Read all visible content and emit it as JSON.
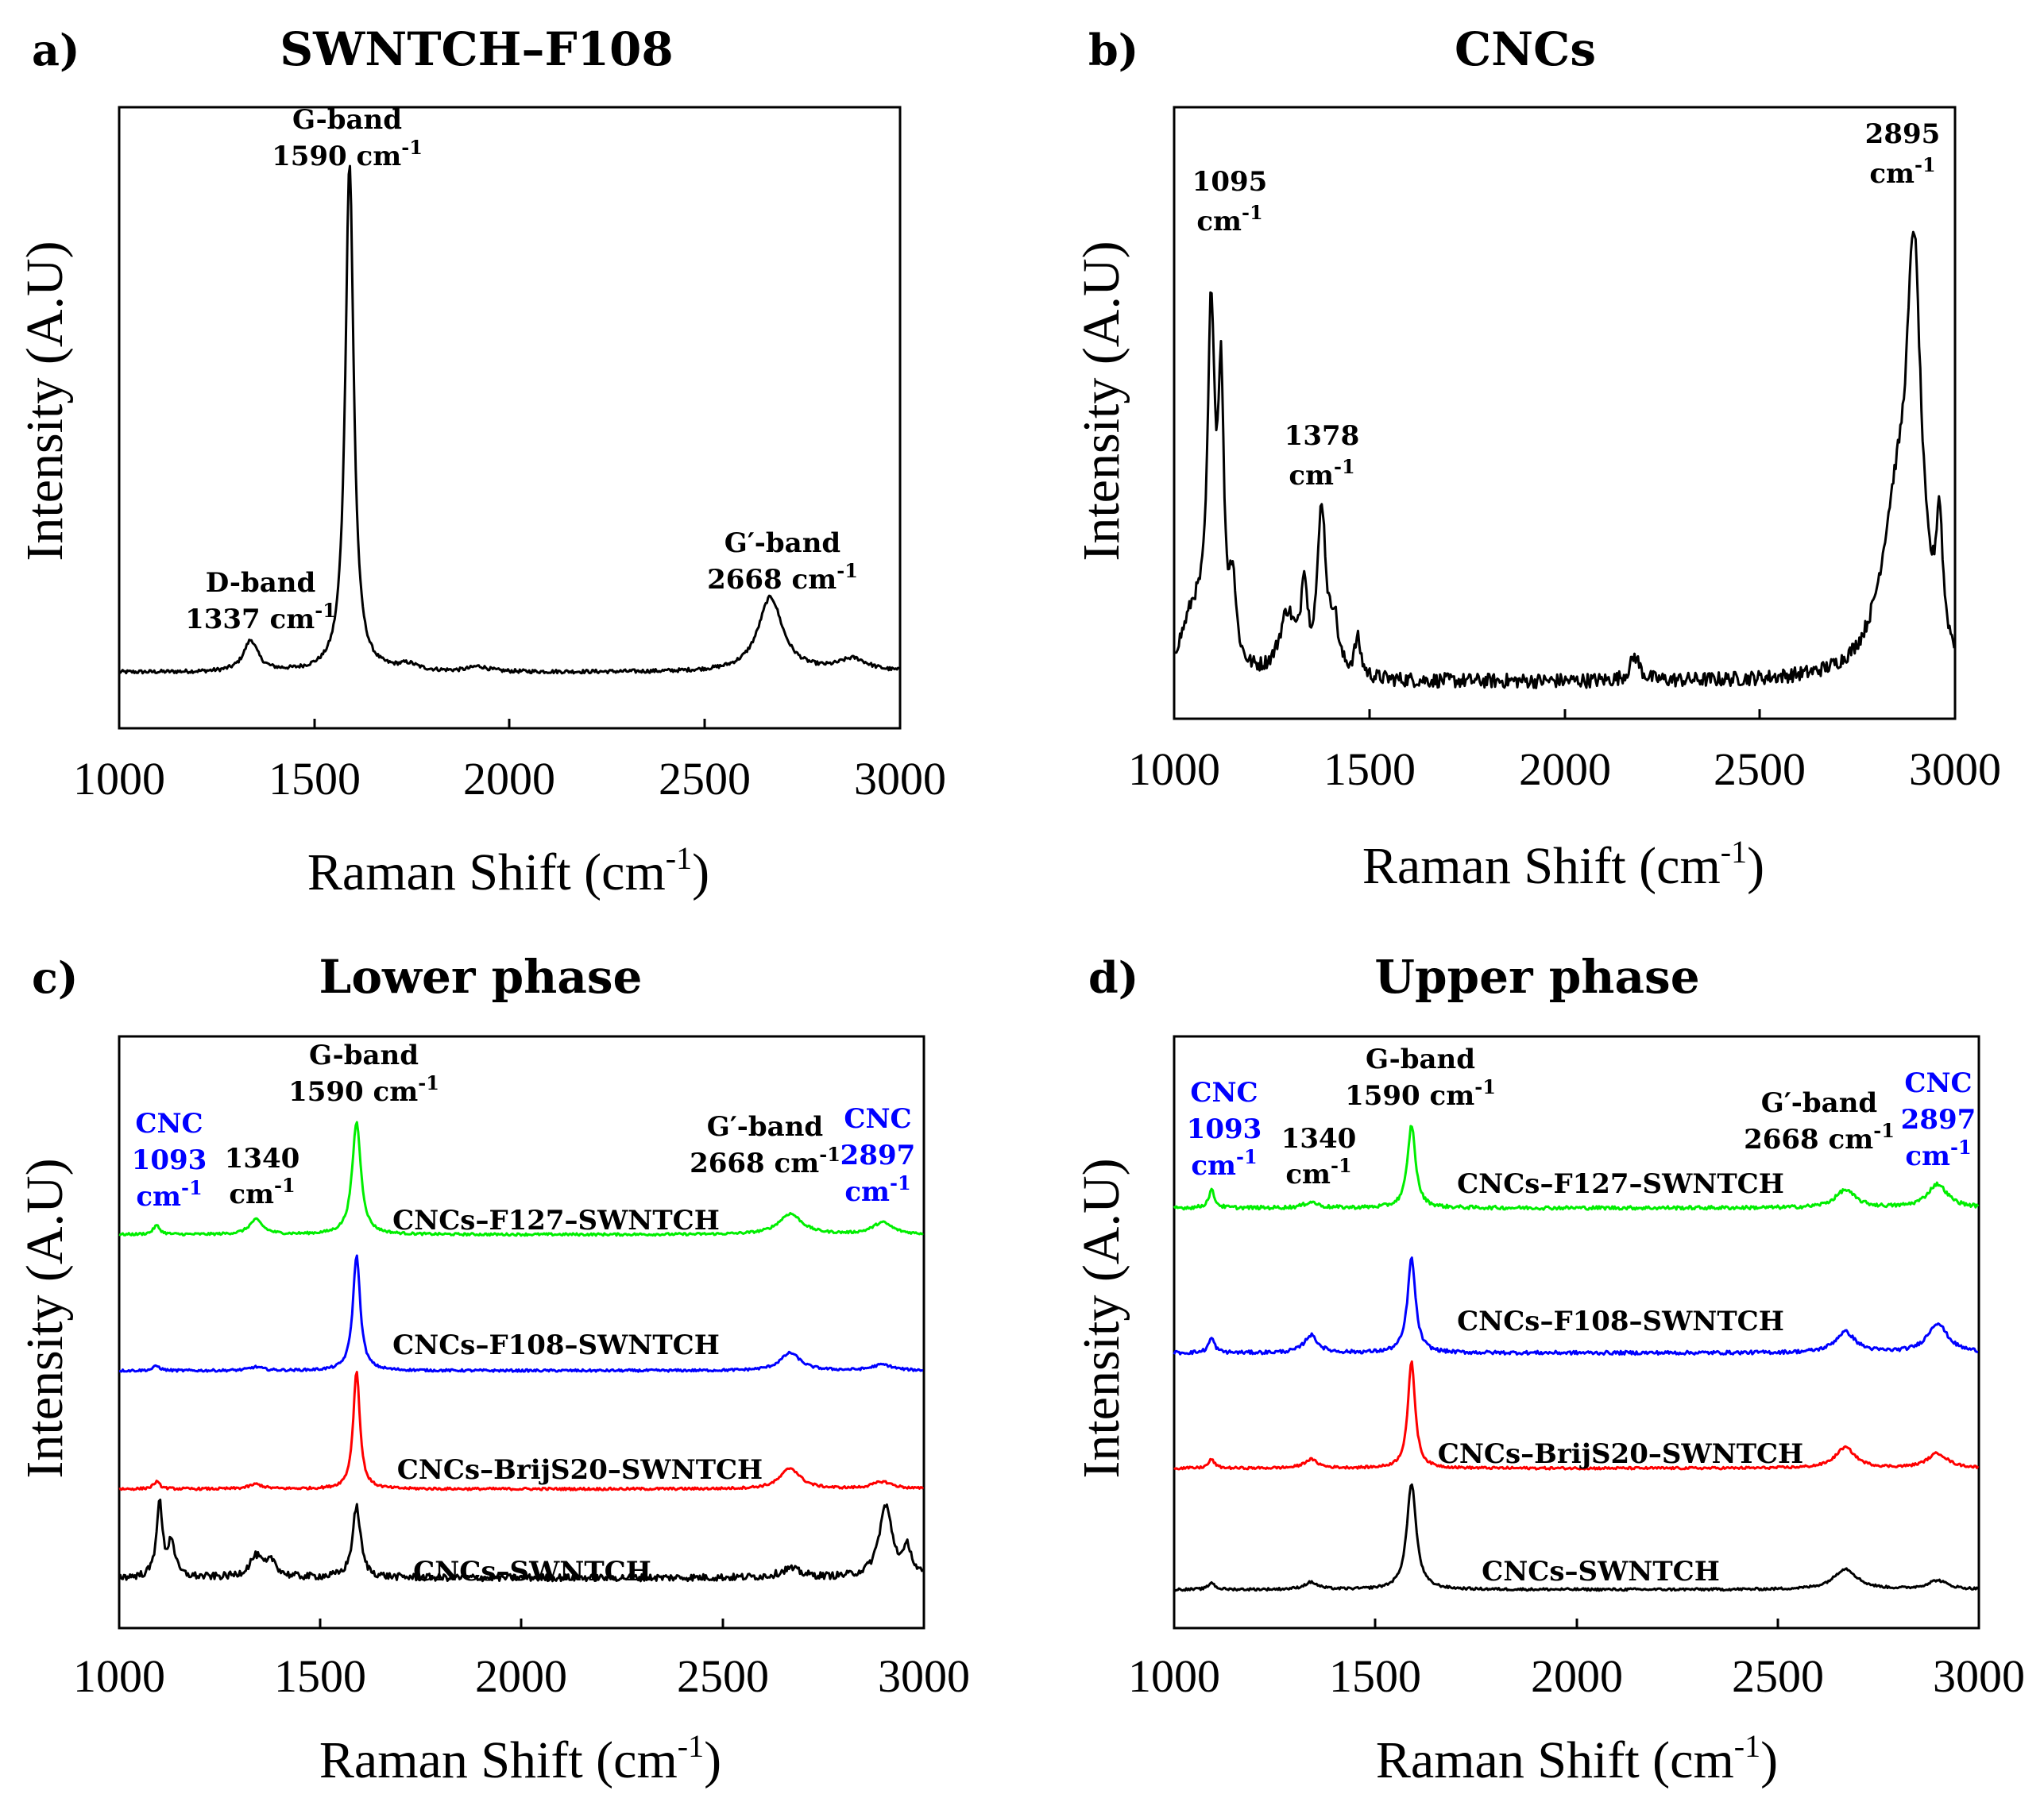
{
  "figure": {
    "panels": [
      {
        "letter": "a)",
        "title": "SWNTCH–F108",
        "xlabel": "Raman Shift (cm",
        "ylabel": "Intensity (A.U)",
        "annotations": [
          {
            "line1": "G-band",
            "line2": "1590 cm",
            "sup": "-1"
          },
          {
            "line1": "D-band",
            "line2": "1337 cm",
            "sup": "-1"
          },
          {
            "line1": "G′-band",
            "line2": "2668 cm",
            "sup": "-1"
          }
        ]
      },
      {
        "letter": "b)",
        "title": "CNCs",
        "xlabel": "Raman Shift (cm",
        "ylabel": "Intensity (A.U)",
        "annotations": [
          {
            "line1": "1095",
            "line2": "cm",
            "sup": "-1"
          },
          {
            "line1": "1378",
            "line2": "cm",
            "sup": "-1"
          },
          {
            "line1": "2895",
            "line2": "cm",
            "sup": "-1"
          }
        ]
      },
      {
        "letter": "c)",
        "title": "Lower phase",
        "xlabel": "Raman Shift (cm",
        "ylabel": "Intensity (A.U)",
        "annotations": [
          {
            "line1": "G-band",
            "line2": "1590 cm",
            "sup": "-1"
          },
          {
            "line1": "1340",
            "line2": "cm",
            "sup": "-1"
          },
          {
            "line1": "G′-band",
            "line2": "2668 cm",
            "sup": "-1"
          }
        ],
        "blue_annotations": [
          {
            "line1": "CNC",
            "line2": "1093",
            "line3": "cm",
            "sup": "-1"
          },
          {
            "line1": "CNC",
            "line2": "2897",
            "line3": "cm",
            "sup": "-1"
          }
        ]
      },
      {
        "letter": "d)",
        "title": "Upper phase",
        "xlabel": "Raman Shift (cm",
        "ylabel": "Intensity (A.U)",
        "annotations": [
          {
            "line1": "G-band",
            "line2": "1590 cm",
            "sup": "-1"
          },
          {
            "line1": "1340",
            "line2": "cm",
            "sup": "-1"
          },
          {
            "line1": "G′-band",
            "line2": "2668 cm",
            "sup": "-1"
          }
        ],
        "blue_annotations": [
          {
            "line1": "CNC",
            "line2": "1093",
            "line3": "cm",
            "sup": "-1"
          },
          {
            "line1": "CNC",
            "line2": "2897",
            "line3": "cm",
            "sup": "-1"
          }
        ]
      }
    ],
    "xlabel_sup": "-1",
    "xlabel_close": ")"
  },
  "chart_data": [
    {
      "type": "line",
      "title": "SWNTCH–F108",
      "xlabel": "Raman Shift (cm-1)",
      "ylabel": "Intensity (A.U)",
      "xlim": [
        1000,
        3000
      ],
      "ylim": [
        0,
        1.0
      ],
      "x_ticks": [
        1000,
        1500,
        2000,
        2500,
        3000
      ],
      "series": [
        {
          "name": "SWNTCH–F108",
          "color": "#000000",
          "baseline": 0.09,
          "noise": 0.003,
          "peaks": [
            [
              1337,
              0.05,
              22
            ],
            [
              1590,
              0.82,
              13
            ],
            [
              1740,
              0.01,
              30
            ],
            [
              1920,
              0.008,
              30
            ],
            [
              2668,
              0.12,
              38
            ],
            [
              2880,
              0.02,
              45
            ]
          ]
        }
      ]
    },
    {
      "type": "line",
      "title": "CNCs",
      "xlabel": "Raman Shift (cm-1)",
      "ylabel": "Intensity (A.U)",
      "xlim": [
        1000,
        3000
      ],
      "ylim": [
        0,
        1.0
      ],
      "x_ticks": [
        1000,
        1500,
        2000,
        2500,
        3000
      ],
      "series": [
        {
          "name": "CNCs",
          "color": "#000000",
          "baseline": 0.06,
          "noise": 0.012,
          "peaks": [
            [
              1050,
              0.1,
              40
            ],
            [
              1095,
              0.55,
              11
            ],
            [
              1120,
              0.42,
              9
            ],
            [
              1150,
              0.13,
              10
            ],
            [
              1290,
              0.1,
              25
            ],
            [
              1333,
              0.14,
              9
            ],
            [
              1378,
              0.27,
              13
            ],
            [
              1410,
              0.08,
              12
            ],
            [
              1470,
              0.06,
              10
            ],
            [
              2180,
              0.04,
              15
            ],
            [
              2850,
              0.25,
              50
            ],
            [
              2895,
              0.6,
              22
            ],
            [
              2960,
              0.2,
              10
            ]
          ]
        }
      ]
    },
    {
      "type": "line",
      "title": "Lower phase",
      "xlabel": "Raman Shift (cm-1)",
      "ylabel": "Intensity (A.U)",
      "xlim": [
        1000,
        3000
      ],
      "ylim": [
        0,
        1.0
      ],
      "x_ticks": [
        1000,
        1500,
        2000,
        2500,
        3000
      ],
      "series": [
        {
          "name": "CNCs–F127–SWNTCH",
          "color": "#00ee00",
          "baseline": 0.665,
          "noise": 0.002,
          "peaks": [
            [
              1093,
              0.015,
              10
            ],
            [
              1340,
              0.025,
              20
            ],
            [
              1590,
              0.19,
              13
            ],
            [
              2668,
              0.035,
              35
            ],
            [
              2897,
              0.02,
              30
            ]
          ]
        },
        {
          "name": "CNCs–F108–SWNTCH",
          "color": "#0000ff",
          "baseline": 0.435,
          "noise": 0.002,
          "peaks": [
            [
              1093,
              0.008,
              10
            ],
            [
              1340,
              0.006,
              20
            ],
            [
              1590,
              0.195,
              11
            ],
            [
              2668,
              0.03,
              30
            ],
            [
              2897,
              0.01,
              30
            ]
          ]
        },
        {
          "name": "CNCs–BrijS20–SWNTCH",
          "color": "#ff0000",
          "baseline": 0.235,
          "noise": 0.002,
          "peaks": [
            [
              1093,
              0.012,
              10
            ],
            [
              1340,
              0.008,
              20
            ],
            [
              1590,
              0.2,
              10
            ],
            [
              2668,
              0.035,
              30
            ],
            [
              2897,
              0.012,
              30
            ]
          ]
        },
        {
          "name": "CNCs–SWNTCH",
          "color": "#000000",
          "baseline": 0.085,
          "noise": 0.006,
          "peaks": [
            [
              1100,
              0.125,
              9
            ],
            [
              1130,
              0.06,
              10
            ],
            [
              1340,
              0.035,
              20
            ],
            [
              1380,
              0.025,
              15
            ],
            [
              1590,
              0.12,
              12
            ],
            [
              2668,
              0.015,
              30
            ],
            [
              2905,
              0.12,
              20
            ],
            [
              2960,
              0.045,
              12
            ]
          ]
        }
      ]
    },
    {
      "type": "line",
      "title": "Upper phase",
      "xlabel": "Raman Shift (cm-1)",
      "ylabel": "Intensity (A.U)",
      "xlim": [
        1000,
        3000
      ],
      "ylim": [
        0,
        1.0
      ],
      "x_ticks": [
        1000,
        1500,
        2000,
        2500,
        3000
      ],
      "series": [
        {
          "name": "CNCs–F127–SWNTCH",
          "color": "#00ee00",
          "baseline": 0.71,
          "noise": 0.003,
          "peaks": [
            [
              1093,
              0.03,
              9
            ],
            [
              1340,
              0.01,
              20
            ],
            [
              1590,
              0.14,
              12
            ],
            [
              2668,
              0.03,
              30
            ],
            [
              2897,
              0.04,
              30
            ]
          ]
        },
        {
          "name": "CNCs–F108–SWNTCH",
          "color": "#0000ff",
          "baseline": 0.465,
          "noise": 0.003,
          "peaks": [
            [
              1093,
              0.025,
              9
            ],
            [
              1340,
              0.03,
              20
            ],
            [
              1590,
              0.16,
              12
            ],
            [
              2668,
              0.035,
              30
            ],
            [
              2897,
              0.05,
              30
            ]
          ]
        },
        {
          "name": "CNCs–BrijS20–SWNTCH",
          "color": "#ff0000",
          "baseline": 0.27,
          "noise": 0.002,
          "peaks": [
            [
              1093,
              0.015,
              9
            ],
            [
              1340,
              0.015,
              20
            ],
            [
              1590,
              0.18,
              11
            ],
            [
              2668,
              0.035,
              30
            ],
            [
              2897,
              0.025,
              30
            ]
          ]
        },
        {
          "name": "CNCs–SWNTCH",
          "color": "#000000",
          "baseline": 0.065,
          "noise": 0.002,
          "peaks": [
            [
              1093,
              0.012,
              9
            ],
            [
              1340,
              0.012,
              20
            ],
            [
              1590,
              0.18,
              14
            ],
            [
              2668,
              0.035,
              35
            ],
            [
              2897,
              0.015,
              30
            ]
          ]
        }
      ]
    }
  ]
}
